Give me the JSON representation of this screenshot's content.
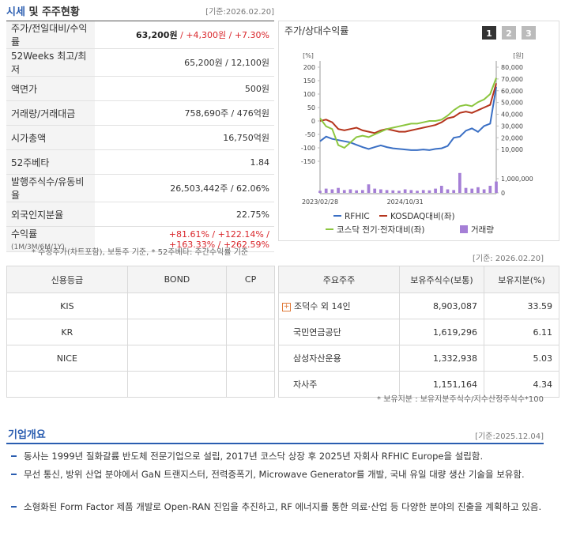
{
  "market": {
    "title": "시세",
    "title_rest": "및 주주현황",
    "date": "[기준:2026.02.20]",
    "rows": [
      {
        "label": "주가/전일대비/수익률",
        "value": [
          {
            "text": "63,200원",
            "color": "#222222"
          },
          {
            "text": "/ +4,300원",
            "color": "#d9262b"
          },
          {
            "text": "/ +7.30%",
            "color": "#d9262b"
          }
        ]
      },
      {
        "label": "52Weeks 최고/최저",
        "value": [
          {
            "text": "65,200원 / 12,100원",
            "color": "#333333"
          }
        ]
      },
      {
        "label": "액면가",
        "value": [
          {
            "text": "500원",
            "color": "#333333"
          }
        ]
      },
      {
        "label": "거래량/거래대금",
        "value": [
          {
            "text": "758,690주 / 476억원",
            "color": "#333333"
          }
        ]
      },
      {
        "label": "시가총액",
        "value": [
          {
            "text": "16,750억원",
            "color": "#333333"
          }
        ]
      },
      {
        "label": "52주베타",
        "value": [
          {
            "text": "1.84",
            "color": "#333333"
          }
        ]
      },
      {
        "label": "발행주식수/유동비율",
        "value": [
          {
            "text": "26,503,442주 / 62.06%",
            "color": "#333333"
          }
        ]
      },
      {
        "label": "외국인지분율",
        "value": [
          {
            "text": "22.75%",
            "color": "#333333"
          }
        ]
      },
      {
        "label": "수익률",
        "label_note": "(1M/3M/6M/1Y)",
        "value": [
          {
            "text": "+81.61% / +122.14% / +163.33% / +262.59%",
            "color": "#d9262b"
          }
        ]
      }
    ],
    "note": "* 수정주가(차트포함), 보통주 기준, * 52주베타: 주간수익률 기준"
  },
  "chart_panel": {
    "buttons": [
      "1",
      "2",
      "3"
    ],
    "date": "[기준: 2026.02.20]"
  },
  "chart_data": {
    "type": "line",
    "title": "주가/상대수익률",
    "ylabel": "[%]",
    "y2label": "[원]",
    "categories": [
      "2023/02/28",
      null,
      null,
      null,
      null,
      null,
      null,
      null,
      null,
      null,
      null,
      null,
      null,
      null,
      "2024/10/31",
      null,
      null,
      null,
      null,
      null,
      null,
      null,
      null,
      null,
      null,
      null,
      null,
      null,
      null,
      null
    ],
    "ylim": [
      -150,
      200
    ],
    "yticks": [
      200,
      150,
      100,
      50,
      0,
      -50,
      -100,
      -150
    ],
    "y2lim": [
      0,
      80000
    ],
    "y2ticks": [
      {
        "value": 80000,
        "label": "80,000"
      },
      {
        "value": 70000,
        "label": "70,000"
      },
      {
        "value": 60000,
        "label": "60,000"
      },
      {
        "value": 50000,
        "label": "50,000"
      },
      {
        "value": 40000,
        "label": "40,000"
      },
      {
        "value": 30000,
        "label": "30,000"
      },
      {
        "value": 20000,
        "label": "20,000"
      },
      {
        "value": 10000,
        "label": "10,000"
      }
    ],
    "vlim": [
      0,
      1500000
    ],
    "vticks": [
      {
        "value": 1000000,
        "label": "1,000,000"
      },
      0
    ],
    "series": [
      {
        "name": "RFHIC",
        "color": "#3a6fc4",
        "axis": "y2",
        "values": [
          17000,
          21000,
          19000,
          18000,
          17000,
          16000,
          14000,
          12000,
          10500,
          12000,
          13500,
          12000,
          11000,
          10500,
          10000,
          9500,
          9500,
          10000,
          9500,
          10500,
          11000,
          13000,
          20000,
          21000,
          26000,
          28000,
          25000,
          30000,
          32000,
          63200
        ]
      },
      {
        "name": "KOSDAQ대비(좌)",
        "color": "#b5351d",
        "axis": "y",
        "values": [
          0,
          5,
          -5,
          -30,
          -35,
          -30,
          -25,
          -35,
          -40,
          -45,
          -35,
          -30,
          -35,
          -40,
          -40,
          -35,
          -30,
          -25,
          -20,
          -15,
          -5,
          10,
          15,
          30,
          35,
          30,
          40,
          50,
          60,
          140
        ]
      },
      {
        "name": "코스닥 전기·전자대비(좌)",
        "color": "#8cc63f",
        "axis": "y",
        "values": [
          10,
          -20,
          -30,
          -90,
          -100,
          -80,
          -60,
          -55,
          -60,
          -50,
          -40,
          -30,
          -25,
          -20,
          -15,
          -10,
          -10,
          -5,
          0,
          0,
          5,
          20,
          40,
          55,
          60,
          55,
          70,
          80,
          100,
          160
        ]
      },
      {
        "name": "거래량",
        "color": "#a57fd6",
        "axis": "volume",
        "type": "bar",
        "values": [
          150000,
          300000,
          250000,
          350000,
          200000,
          250000,
          180000,
          200000,
          600000,
          300000,
          250000,
          200000,
          180000,
          150000,
          250000,
          200000,
          150000,
          200000,
          180000,
          300000,
          500000,
          250000,
          200000,
          1400000,
          350000,
          300000,
          400000,
          250000,
          500000,
          800000
        ]
      }
    ]
  },
  "credit": {
    "headers": [
      "신용등급",
      "BOND",
      "CP"
    ],
    "agencies": [
      "KIS",
      "KR",
      "NICE"
    ]
  },
  "holders": {
    "headers": [
      "주요주주",
      "보유주식수(보통)",
      "보유지분(%)"
    ],
    "rows": [
      [
        "조덕수 외 14인",
        "8,903,087",
        "33.59"
      ],
      [
        "국민연금공단",
        "1,619,296",
        "6.11"
      ],
      [
        "삼성자산운용",
        "1,332,938",
        "5.03"
      ],
      [
        "자사주",
        "1,151,164",
        "4.34"
      ]
    ],
    "note": "* 보유지분 : 보유지분주식수/지수산정주식수*100"
  },
  "overview": {
    "title": "기업개요",
    "date": "[기준:2025.12.04]",
    "bullets": [
      "동사는 1999년 질화갈륨 반도체 전문기업으로 설립, 2017년 코스닥 상장 후 2025년 자회사 RFHIC Europe을 설립함.",
      "무선 통신, 방위 산업 분야에서 GaN 트랜지스터, 전력증폭기, Microwave Generator를 개발, 국내 유일 대량 생산 기술을 보유함.",
      "소형화된 Form Factor 제품 개발로 Open-RAN 진입을 추진하고, RF 에너지를 통한 의료·산업 등 다양한 분야의 진출을 계획하고 있음."
    ]
  }
}
